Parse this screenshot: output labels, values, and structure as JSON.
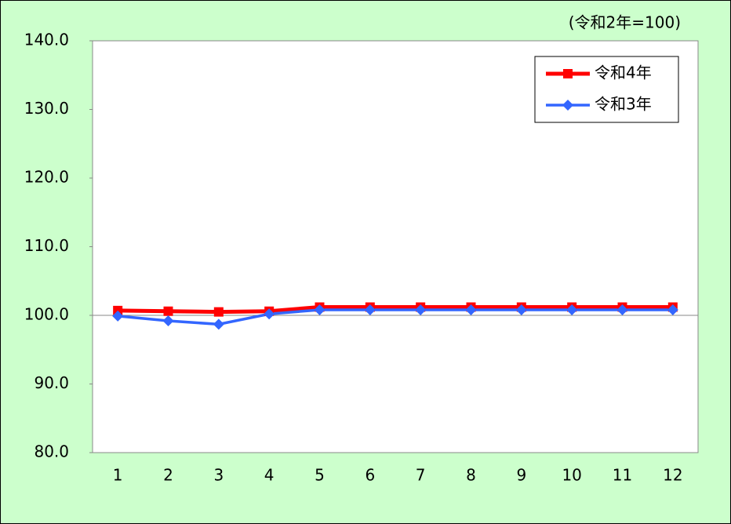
{
  "chart_data": {
    "type": "line",
    "annotation": "(令和2年=100)",
    "categories": [
      "1",
      "2",
      "3",
      "4",
      "5",
      "6",
      "7",
      "8",
      "9",
      "10",
      "11",
      "12"
    ],
    "series": [
      {
        "name": "令和4年",
        "color": "#ff0000",
        "marker": "square",
        "values": [
          100.7,
          100.6,
          100.5,
          100.6,
          101.2,
          101.2,
          101.2,
          101.2,
          101.2,
          101.2,
          101.2,
          101.2
        ]
      },
      {
        "name": "令和3年",
        "color": "#3366ff",
        "marker": "diamond",
        "values": [
          99.9,
          99.2,
          98.7,
          100.2,
          100.8,
          100.8,
          100.8,
          100.8,
          100.8,
          100.8,
          100.8,
          100.8
        ]
      }
    ],
    "ylim": [
      80,
      140
    ],
    "yticks": [
      {
        "value": 80,
        "label": "80.0"
      },
      {
        "value": 90,
        "label": "90.0"
      },
      {
        "value": 100,
        "label": "100.0"
      },
      {
        "value": 110,
        "label": "110.0"
      },
      {
        "value": 120,
        "label": "120.0"
      },
      {
        "value": 130,
        "label": "130.0"
      },
      {
        "value": 140,
        "label": "140.0"
      }
    ],
    "reference_line": 100,
    "legend": "top-right"
  }
}
